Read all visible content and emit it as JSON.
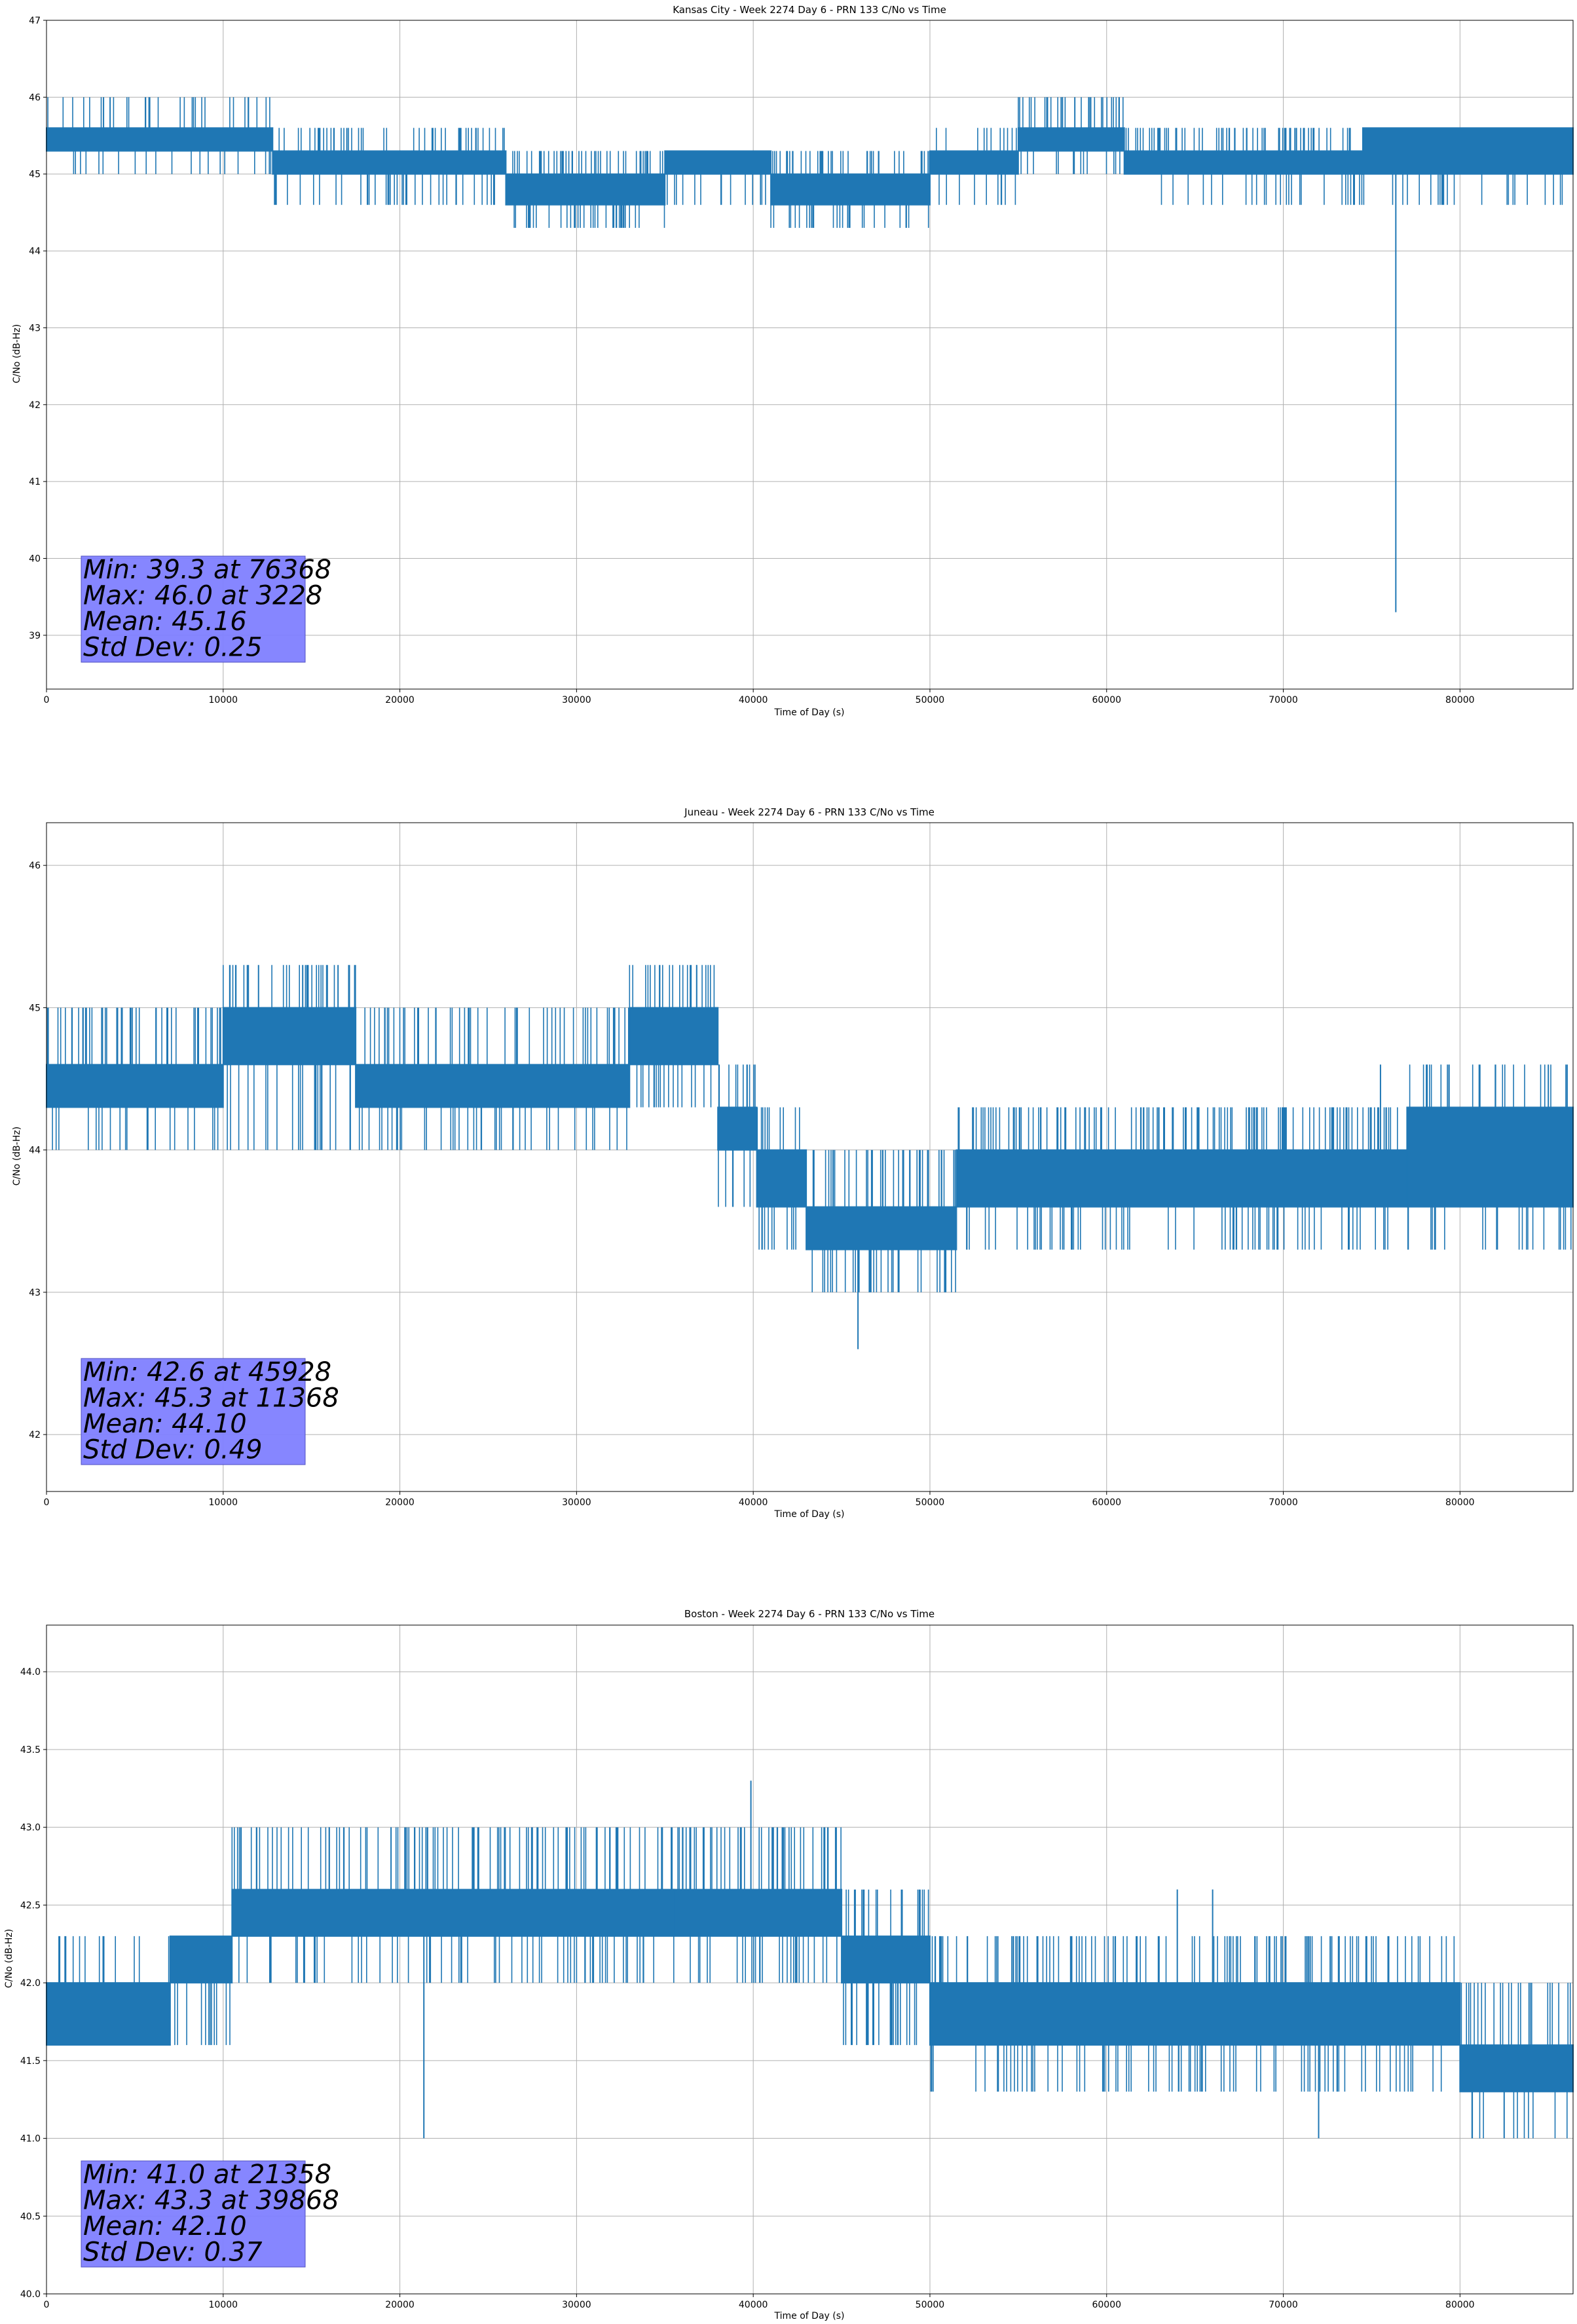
{
  "chart_data": [
    {
      "type": "line",
      "title": "Kansas City - Week 2274 Day 6 - PRN 133 C/No vs Time",
      "xlabel": "Time of Day (s)",
      "ylabel": "C/No (dB-Hz)",
      "xlim": [
        0,
        86400
      ],
      "ylim": [
        38.3,
        47.0
      ],
      "xticks": [
        0,
        10000,
        20000,
        30000,
        40000,
        50000,
        60000,
        70000,
        80000
      ],
      "yticks": [
        39,
        40,
        41,
        42,
        43,
        44,
        45,
        46,
        47
      ],
      "ytick_decimals": 0,
      "grid": true,
      "color": "#1f77b4",
      "stats_box_color": "#8080ff",
      "stats": [
        "Min: 39.3 at 76368",
        "Max: 46.0 at 3228",
        "Mean: 45.16",
        "Std Dev: 0.25"
      ],
      "series": [
        {
          "values_note_free": true,
          "segments": [
            {
              "x0": 0,
              "x1": 12800,
              "lo": 45.3,
              "hi": 45.6,
              "dlo": 45.0,
              "dhi": 46.0,
              "dens": 0.35
            },
            {
              "x0": 12800,
              "x1": 26000,
              "lo": 45.0,
              "hi": 45.3,
              "dlo": 44.6,
              "dhi": 45.6,
              "dens": 0.55
            },
            {
              "x0": 26000,
              "x1": 35000,
              "lo": 44.6,
              "hi": 45.0,
              "dlo": 44.3,
              "dhi": 45.3,
              "dens": 0.7
            },
            {
              "x0": 35000,
              "x1": 41000,
              "lo": 45.0,
              "hi": 45.3,
              "dlo": 44.6,
              "dhi": 45.3,
              "dens": 0.55
            },
            {
              "x0": 41000,
              "x1": 50000,
              "lo": 44.6,
              "hi": 45.0,
              "dlo": 44.3,
              "dhi": 45.3,
              "dens": 0.6
            },
            {
              "x0": 50000,
              "x1": 55000,
              "lo": 45.0,
              "hi": 45.3,
              "dlo": 44.6,
              "dhi": 45.6,
              "dens": 0.5
            },
            {
              "x0": 55000,
              "x1": 61000,
              "lo": 45.3,
              "hi": 45.6,
              "dlo": 45.0,
              "dhi": 46.0,
              "dens": 0.45
            },
            {
              "x0": 61000,
              "x1": 74500,
              "lo": 45.0,
              "hi": 45.3,
              "dlo": 44.6,
              "dhi": 45.6,
              "dens": 0.55
            },
            {
              "x0": 74500,
              "x1": 86400,
              "lo": 45.0,
              "hi": 45.6,
              "dlo": 44.6,
              "dhi": 45.6,
              "dens": 0.45
            }
          ],
          "spikes": [
            [
              3228,
              46.0
            ],
            [
              3600,
              46.0
            ],
            [
              57500,
              46.0
            ],
            [
              58200,
              46.0
            ],
            [
              59000,
              46.0
            ],
            [
              76368,
              39.3
            ],
            [
              17000,
              45.6
            ]
          ]
        }
      ]
    },
    {
      "type": "line",
      "title": "Juneau - Week 2274 Day 6 - PRN 133 C/No vs Time",
      "xlabel": "Time of Day (s)",
      "ylabel": "C/No (dB-Hz)",
      "xlim": [
        0,
        86400
      ],
      "ylim": [
        41.6,
        46.3
      ],
      "xticks": [
        0,
        10000,
        20000,
        30000,
        40000,
        50000,
        60000,
        70000,
        80000
      ],
      "yticks": [
        42,
        43,
        44,
        45,
        46
      ],
      "ytick_decimals": 0,
      "grid": true,
      "color": "#1f77b4",
      "stats_box_color": "#8080ff",
      "stats": [
        "Min: 42.6 at 45928",
        "Max: 45.3 at 11368",
        "Mean: 44.10",
        "Std Dev: 0.49"
      ],
      "series": [
        {
          "segments": [
            {
              "x0": 0,
              "x1": 10000,
              "lo": 44.3,
              "hi": 44.6,
              "dlo": 44.0,
              "dhi": 45.0,
              "dens": 0.5
            },
            {
              "x0": 10000,
              "x1": 17500,
              "lo": 44.6,
              "hi": 45.0,
              "dlo": 44.0,
              "dhi": 45.3,
              "dens": 0.55
            },
            {
              "x0": 17500,
              "x1": 33000,
              "lo": 44.3,
              "hi": 44.6,
              "dlo": 44.0,
              "dhi": 45.0,
              "dens": 0.55
            },
            {
              "x0": 33000,
              "x1": 38000,
              "lo": 44.6,
              "hi": 45.0,
              "dlo": 44.3,
              "dhi": 45.3,
              "dens": 0.6
            },
            {
              "x0": 38000,
              "x1": 40200,
              "lo": 44.0,
              "hi": 44.3,
              "dlo": 43.6,
              "dhi": 44.6,
              "dens": 0.6
            },
            {
              "x0": 40200,
              "x1": 43000,
              "lo": 43.6,
              "hi": 44.0,
              "dlo": 43.3,
              "dhi": 44.3,
              "dens": 0.6
            },
            {
              "x0": 43000,
              "x1": 51500,
              "lo": 43.3,
              "hi": 43.6,
              "dlo": 43.0,
              "dhi": 44.0,
              "dens": 0.6
            },
            {
              "x0": 51500,
              "x1": 77000,
              "lo": 43.6,
              "hi": 44.0,
              "dlo": 43.3,
              "dhi": 44.3,
              "dens": 0.55
            },
            {
              "x0": 77000,
              "x1": 86400,
              "lo": 43.6,
              "hi": 44.3,
              "dlo": 43.3,
              "dhi": 44.6,
              "dens": 0.5
            }
          ],
          "spikes": [
            [
              11368,
              45.3
            ],
            [
              12000,
              45.3
            ],
            [
              14500,
              45.3
            ],
            [
              16500,
              45.3
            ],
            [
              36800,
              45.3
            ],
            [
              45928,
              42.6
            ],
            [
              75500,
              44.6
            ],
            [
              85000,
              44.6
            ],
            [
              86000,
              44.6
            ]
          ]
        }
      ]
    },
    {
      "type": "line",
      "title": "Boston - Week 2274 Day 6 - PRN 133 C/No vs Time",
      "xlabel": "Time of Day (s)",
      "ylabel": "C/No (dB-Hz)",
      "xlim": [
        0,
        86400
      ],
      "ylim": [
        40.0,
        44.3
      ],
      "xticks": [
        0,
        10000,
        20000,
        30000,
        40000,
        50000,
        60000,
        70000,
        80000
      ],
      "yticks": [
        40.0,
        40.5,
        41.0,
        41.5,
        42.0,
        42.5,
        43.0,
        43.5,
        44.0
      ],
      "ytick_decimals": 1,
      "grid": true,
      "color": "#1f77b4",
      "stats_box_color": "#8080ff",
      "stats": [
        "Min: 41.0 at 21358",
        "Max: 43.3 at 39868",
        "Mean: 42.10",
        "Std Dev: 0.37"
      ],
      "series": [
        {
          "segments": [
            {
              "x0": 0,
              "x1": 7000,
              "lo": 41.6,
              "hi": 42.0,
              "dlo": 41.6,
              "dhi": 42.3,
              "dens": 0.45
            },
            {
              "x0": 7000,
              "x1": 10500,
              "lo": 42.0,
              "hi": 42.3,
              "dlo": 41.6,
              "dhi": 42.3,
              "dens": 0.5
            },
            {
              "x0": 10500,
              "x1": 35500,
              "lo": 42.3,
              "hi": 42.6,
              "dlo": 42.0,
              "dhi": 43.0,
              "dens": 0.55
            },
            {
              "x0": 35500,
              "x1": 45000,
              "lo": 42.3,
              "hi": 42.6,
              "dlo": 42.0,
              "dhi": 43.0,
              "dens": 0.6
            },
            {
              "x0": 45000,
              "x1": 50000,
              "lo": 42.0,
              "hi": 42.3,
              "dlo": 41.6,
              "dhi": 42.6,
              "dens": 0.55
            },
            {
              "x0": 50000,
              "x1": 80000,
              "lo": 41.6,
              "hi": 42.0,
              "dlo": 41.3,
              "dhi": 42.3,
              "dens": 0.55
            },
            {
              "x0": 80000,
              "x1": 86400,
              "lo": 41.3,
              "hi": 41.6,
              "dlo": 41.0,
              "dhi": 42.0,
              "dens": 0.55
            }
          ],
          "spikes": [
            [
              21358,
              41.0
            ],
            [
              39868,
              43.3
            ],
            [
              16000,
              43.0
            ],
            [
              19500,
              43.0
            ],
            [
              64000,
              42.6
            ],
            [
              66000,
              42.6
            ],
            [
              72000,
              41.0
            ],
            [
              82500,
              41.0
            ]
          ]
        }
      ]
    }
  ]
}
